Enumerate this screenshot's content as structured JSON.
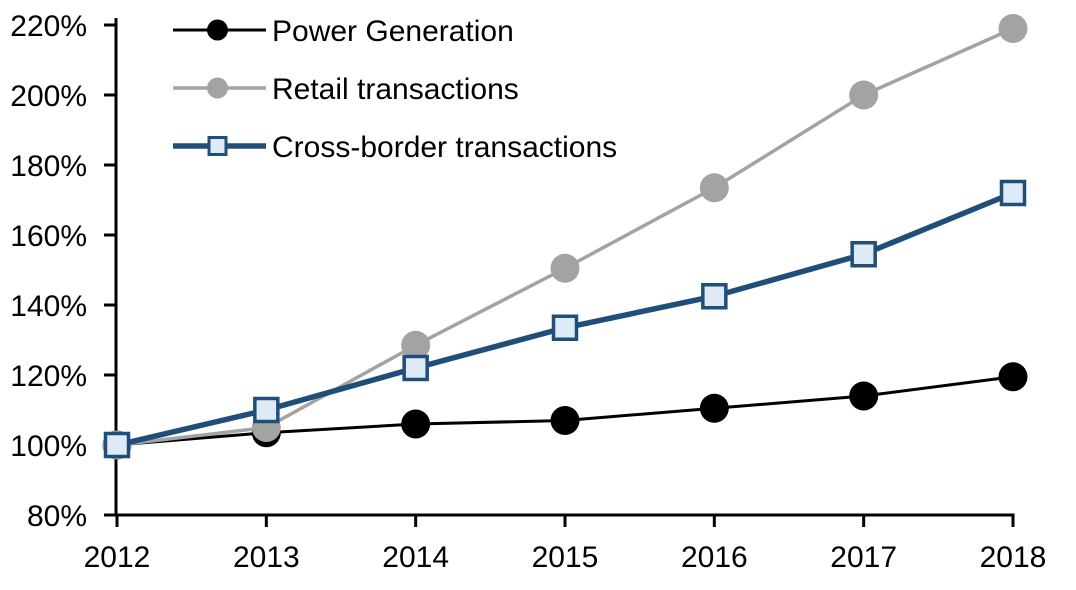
{
  "figure": {
    "background": "#ffffff",
    "text_color": "#000000",
    "axis_color": "#000000"
  },
  "chart_data": {
    "type": "line",
    "title": "",
    "xlabel": "",
    "ylabel": "",
    "grid": false,
    "legend_position": "top-left",
    "x_categories": [
      "2012",
      "2013",
      "2014",
      "2015",
      "2016",
      "2017",
      "2018"
    ],
    "x_axis": {
      "tick_labels": [
        "2012",
        "2013",
        "2014",
        "2015",
        "2016",
        "2017",
        "2018"
      ]
    },
    "y_axis": {
      "min": 80,
      "max": 220,
      "step": 20,
      "suffix": "%",
      "tick_labels": [
        "220%",
        "200%",
        "180%",
        "160%",
        "140%",
        "120%",
        "100%",
        "80%"
      ]
    },
    "series": [
      {
        "name": "Power Generation",
        "color": "#000000",
        "line_width": 3,
        "marker": "circle",
        "marker_fill": "#000000",
        "values": [
          100,
          103.5,
          106,
          107,
          110.5,
          114,
          119.5
        ]
      },
      {
        "name": "Retail transactions",
        "color": "#a3a3a3",
        "line_width": 3.5,
        "marker": "circle",
        "marker_fill": "#a3a3a3",
        "values": [
          100,
          105,
          128.5,
          150.5,
          173.5,
          200,
          219
        ]
      },
      {
        "name": "Cross-border transactions",
        "color": "#1f4e79",
        "line_width": 5.5,
        "marker": "square",
        "marker_fill": "#deeaf6",
        "values": [
          100,
          110,
          122,
          133.5,
          142.5,
          154.5,
          172
        ]
      }
    ]
  }
}
